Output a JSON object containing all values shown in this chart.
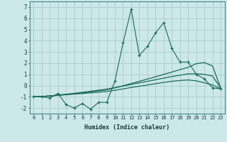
{
  "xlabel": "Humidex (Indice chaleur)",
  "background_color": "#cce8e8",
  "grid_color": "#aacccc",
  "line_color": "#1a6b5a",
  "x_data": [
    0,
    1,
    2,
    3,
    4,
    5,
    6,
    7,
    8,
    9,
    10,
    11,
    12,
    13,
    14,
    15,
    16,
    17,
    18,
    19,
    20,
    21,
    22,
    23
  ],
  "y_main": [
    -1.0,
    -1.0,
    -1.1,
    -0.7,
    -1.7,
    -2.0,
    -1.6,
    -2.1,
    -1.5,
    -1.5,
    0.4,
    3.8,
    6.8,
    2.7,
    3.5,
    4.7,
    5.6,
    3.3,
    2.1,
    2.1,
    1.0,
    0.6,
    -0.2,
    -0.3
  ],
  "y_line1": [
    -1.0,
    -0.98,
    -0.93,
    -0.87,
    -0.8,
    -0.73,
    -0.65,
    -0.56,
    -0.47,
    -0.38,
    -0.2,
    -0.02,
    0.18,
    0.38,
    0.58,
    0.78,
    1.0,
    1.2,
    1.42,
    1.62,
    1.95,
    2.05,
    1.75,
    -0.22
  ],
  "y_line2": [
    -1.0,
    -0.97,
    -0.92,
    -0.85,
    -0.77,
    -0.69,
    -0.6,
    -0.51,
    -0.41,
    -0.32,
    -0.18,
    -0.04,
    0.1,
    0.24,
    0.38,
    0.52,
    0.66,
    0.8,
    0.92,
    1.04,
    1.05,
    1.0,
    0.85,
    -0.22
  ],
  "y_line3": [
    -1.0,
    -0.97,
    -0.93,
    -0.87,
    -0.82,
    -0.76,
    -0.71,
    -0.65,
    -0.59,
    -0.53,
    -0.42,
    -0.3,
    -0.17,
    -0.06,
    0.05,
    0.17,
    0.28,
    0.38,
    0.45,
    0.5,
    0.42,
    0.25,
    0.05,
    -0.28
  ],
  "ylim": [
    -2.5,
    7.5
  ],
  "xlim": [
    -0.5,
    23.5
  ],
  "yticks": [
    -2,
    -1,
    0,
    1,
    2,
    3,
    4,
    5,
    6,
    7
  ]
}
